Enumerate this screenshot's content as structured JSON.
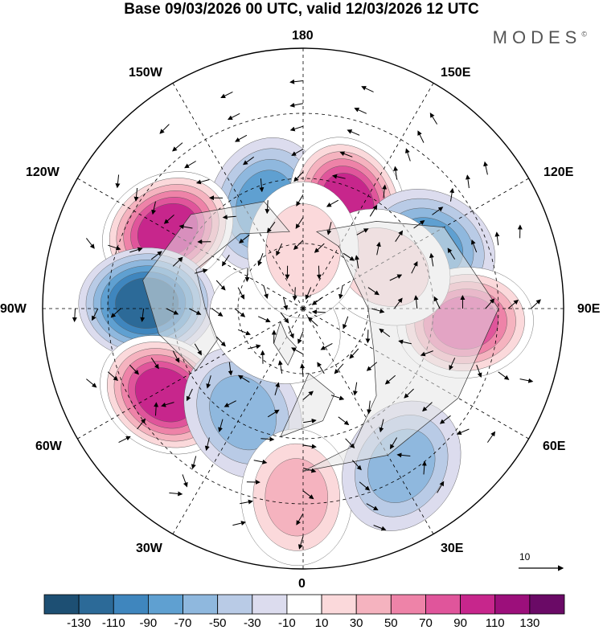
{
  "title": "Base 09/03/2026 00 UTC, valid 12/03/2026 12 UTC",
  "brand": "MODES",
  "brand_mark": "©",
  "longitude_labels": {
    "lon_180": "180",
    "lon_150e": "150E",
    "lon_120e": "120E",
    "lon_90e": "90E",
    "lon_60e": "60E",
    "lon_30e": "30E",
    "lon_0": "0",
    "lon_30w": "30W",
    "lon_60w": "60W",
    "lon_90w": "90W",
    "lon_120w": "120W",
    "lon_150w": "150W"
  },
  "vector_key": "10",
  "colorbar": {
    "labels": [
      "-130",
      "-110",
      "-90",
      "-70",
      "-50",
      "-30",
      "-10",
      "10",
      "30",
      "50",
      "70",
      "90",
      "110",
      "130"
    ],
    "colors": [
      "#1d4f73",
      "#2c6a98",
      "#3f86be",
      "#5fa0d1",
      "#8fb8de",
      "#b9cbe6",
      "#dcdcee",
      "#ffffff",
      "#fbd9db",
      "#f5b3bf",
      "#ee83a8",
      "#e0559b",
      "#c7268c",
      "#9c0f7b",
      "#6a0a66"
    ]
  },
  "anomaly_field": {
    "unit_key": "colorbar",
    "centers": [
      {
        "lon": 200,
        "lat": 56,
        "value": -80
      },
      {
        "lon": 157,
        "lat": 55,
        "value": 120
      },
      {
        "lon": 116,
        "lat": 47,
        "value": -85
      },
      {
        "lon": 85,
        "lat": 40,
        "value": 90
      },
      {
        "lon": 117,
        "lat": 62,
        "value": 40
      },
      {
        "lon": 240,
        "lat": 42,
        "value": 110
      },
      {
        "lon": 268,
        "lat": 42,
        "value": -120
      },
      {
        "lon": 302,
        "lat": 40,
        "value": 120
      },
      {
        "lon": 330,
        "lat": 53,
        "value": -60
      },
      {
        "lon": 358,
        "lat": 32,
        "value": 50
      },
      {
        "lon": 32,
        "lat": 33,
        "value": -60
      },
      {
        "lon": 300,
        "lat": 80,
        "value": 20
      },
      {
        "lon": 180,
        "lat": 72,
        "value": 35
      }
    ]
  }
}
